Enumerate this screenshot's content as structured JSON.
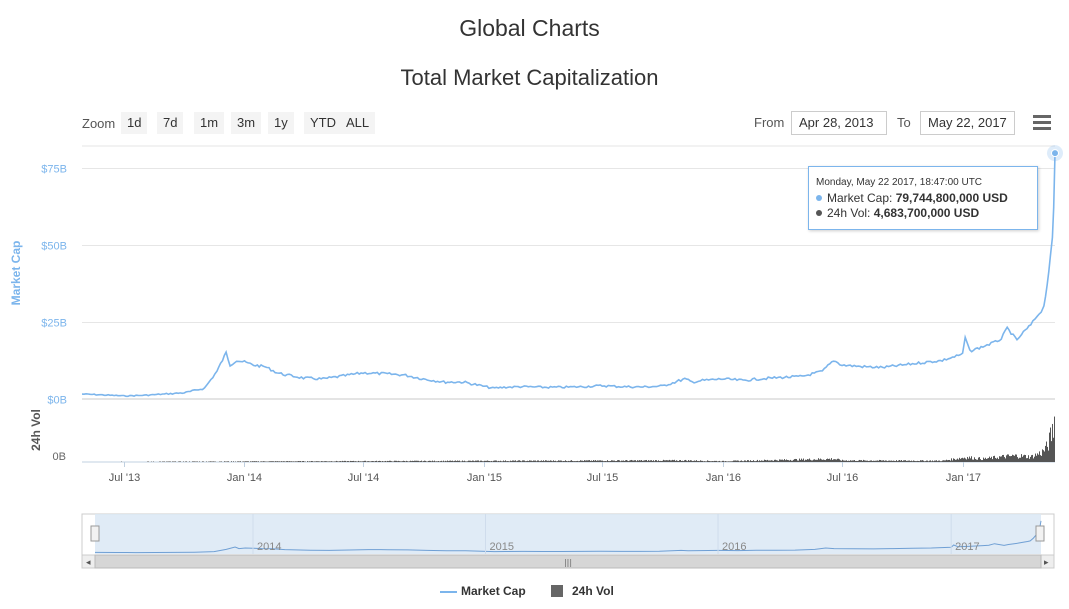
{
  "page": {
    "title": "Global Charts"
  },
  "toolbar": {
    "zoom_label": "Zoom",
    "zoom_buttons": [
      "1d",
      "7d",
      "1m",
      "3m",
      "1y",
      "YTD",
      "ALL"
    ],
    "from_label": "From",
    "from_value": "Apr 28, 2013",
    "to_label": "To",
    "to_value": "May 22, 2017"
  },
  "tooltip": {
    "header": "Monday, May 22 2017, 18:47:00 UTC",
    "market_cap_label": "Market Cap:",
    "market_cap_value": "79,744,800,000 USD",
    "vol_label": "24h Vol:",
    "vol_value": "4,683,700,000 USD"
  },
  "navigator": {
    "year_labels": [
      "2014",
      "2015",
      "2016",
      "2017"
    ]
  },
  "chart_data": {
    "type": "line",
    "title": "Total Market Capitalization",
    "ylabel": "Market Cap",
    "ylabel_secondary": "24h Vol",
    "yticks": [
      "$75B",
      "$50B",
      "$25B",
      "$0B"
    ],
    "ytick_values": [
      75,
      50,
      25,
      0
    ],
    "yticks_secondary": [
      "0B"
    ],
    "ylim": [
      0,
      82
    ],
    "xticks": [
      "Jul '13",
      "Jan '14",
      "Jul '14",
      "Jan '15",
      "Jul '15",
      "Jan '16",
      "Jul '16",
      "Jan '17"
    ],
    "xtick_dates": [
      "2013-07-01",
      "2014-01-01",
      "2014-07-01",
      "2015-01-01",
      "2015-07-01",
      "2016-01-01",
      "2016-07-01",
      "2017-01-01"
    ],
    "xlim": [
      "2013-04-28",
      "2017-05-22"
    ],
    "grid": true,
    "legend_position": "bottom",
    "colors": {
      "market_cap": "#7cb5ec",
      "volume": "#555555",
      "navigator_fill": "#dbe7f5"
    },
    "series": [
      {
        "name": "Market Cap",
        "unit": "billion USD",
        "x": [
          "2013-04-28",
          "2013-06-01",
          "2013-07-01",
          "2013-08-01",
          "2013-09-01",
          "2013-10-01",
          "2013-11-01",
          "2013-11-20",
          "2013-12-04",
          "2013-12-10",
          "2013-12-20",
          "2014-01-01",
          "2014-01-15",
          "2014-02-01",
          "2014-02-20",
          "2014-03-01",
          "2014-04-01",
          "2014-05-01",
          "2014-06-01",
          "2014-07-01",
          "2014-08-01",
          "2014-09-01",
          "2014-10-01",
          "2014-11-01",
          "2014-12-01",
          "2015-01-15",
          "2015-02-01",
          "2015-03-01",
          "2015-04-01",
          "2015-05-01",
          "2015-06-01",
          "2015-07-01",
          "2015-08-01",
          "2015-09-01",
          "2015-10-01",
          "2015-11-04",
          "2015-11-15",
          "2015-12-01",
          "2016-01-01",
          "2016-02-01",
          "2016-03-01",
          "2016-04-01",
          "2016-05-01",
          "2016-06-01",
          "2016-06-18",
          "2016-07-01",
          "2016-08-01",
          "2016-09-01",
          "2016-10-01",
          "2016-11-01",
          "2016-12-01",
          "2017-01-01",
          "2017-01-05",
          "2017-01-12",
          "2017-02-01",
          "2017-02-20",
          "2017-03-01",
          "2017-03-10",
          "2017-03-25",
          "2017-04-01",
          "2017-04-15",
          "2017-04-25",
          "2017-05-01",
          "2017-05-05",
          "2017-05-10",
          "2017-05-15",
          "2017-05-18",
          "2017-05-20",
          "2017-05-22"
        ],
        "values": [
          1.6,
          1.3,
          1.0,
          1.2,
          1.6,
          2.0,
          3.5,
          9.0,
          15.0,
          11.0,
          12.5,
          12.0,
          11.0,
          10.5,
          8.5,
          8.0,
          6.8,
          6.5,
          7.5,
          8.5,
          8.2,
          7.8,
          6.5,
          5.5,
          5.5,
          3.5,
          3.8,
          4.0,
          3.8,
          3.8,
          4.0,
          4.3,
          4.0,
          3.9,
          4.2,
          6.5,
          5.5,
          6.0,
          6.5,
          6.0,
          6.6,
          7.0,
          7.3,
          9.0,
          12.5,
          11.0,
          10.5,
          10.2,
          11.0,
          11.8,
          12.5,
          14.5,
          20.0,
          15.5,
          17.0,
          18.5,
          19.5,
          23.0,
          19.0,
          21.0,
          24.0,
          27.0,
          28.5,
          30.0,
          37.0,
          46.0,
          52.0,
          62.0,
          79.7
        ]
      },
      {
        "name": "24h Vol",
        "unit": "billion USD",
        "x": [
          "2013-04-28",
          "2015-11-04",
          "2016-01-01",
          "2016-06-18",
          "2016-07-01",
          "2016-12-01",
          "2017-01-05",
          "2017-02-01",
          "2017-03-01",
          "2017-03-25",
          "2017-04-15",
          "2017-05-01",
          "2017-05-10",
          "2017-05-15",
          "2017-05-18",
          "2017-05-20",
          "2017-05-22"
        ],
        "values": [
          0.02,
          0.15,
          0.08,
          0.3,
          0.15,
          0.12,
          0.45,
          0.3,
          0.5,
          0.6,
          0.5,
          0.9,
          1.5,
          2.5,
          3.0,
          3.8,
          4.68
        ]
      }
    ]
  },
  "legend": {
    "items": [
      "Market Cap",
      "24h Vol"
    ]
  }
}
